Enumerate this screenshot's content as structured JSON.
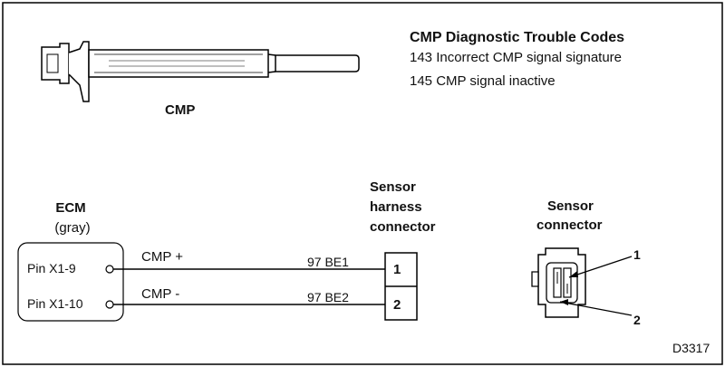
{
  "dtc": {
    "title": "CMP Diagnostic Trouble Codes",
    "codes": [
      "143 Incorrect CMP signal signature",
      "145 CMP signal inactive"
    ]
  },
  "sensor_label": "CMP",
  "ecm": {
    "label": "ECM",
    "sublabel": "(gray)",
    "pins": [
      "Pin X1-9",
      "Pin X1-10"
    ]
  },
  "wires": [
    {
      "signal": "CMP +",
      "circuit": "97 BE1",
      "terminal": "1"
    },
    {
      "signal": "CMP -",
      "circuit": "97 BE2",
      "terminal": "2"
    }
  ],
  "harness_connector": {
    "lines": [
      "Sensor",
      "harness",
      "connector"
    ]
  },
  "sensor_connector": {
    "lines": [
      "Sensor",
      "connector"
    ],
    "pins": [
      "1",
      "2"
    ]
  },
  "figure_id": "D3317"
}
